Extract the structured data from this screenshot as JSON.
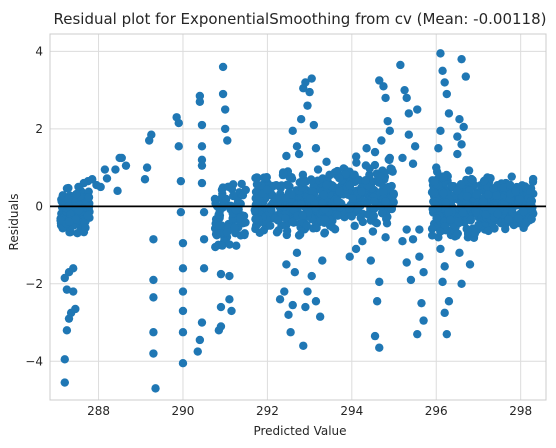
{
  "chart_data": {
    "type": "scatter",
    "title": "Residual plot for ExponentialSmoothing from cv (Mean: -0.00118)",
    "xlabel": "Predicted Value",
    "ylabel": "Residuals",
    "xlim": [
      286.85,
      298.6
    ],
    "ylim": [
      -5.0,
      4.45
    ],
    "xticks": [
      288,
      290,
      292,
      294,
      296,
      298
    ],
    "xtick_labels": [
      "288",
      "290",
      "292",
      "294",
      "296",
      "298"
    ],
    "yticks": [
      -4,
      -2,
      0,
      2,
      4
    ],
    "ytick_labels": [
      "−4",
      "−2",
      "0",
      "2",
      "4"
    ],
    "grid": true,
    "zero_line": 0,
    "marker_color": "#1f77b4",
    "points": [
      [
        287.2,
        -4.55
      ],
      [
        287.2,
        -3.95
      ],
      [
        287.25,
        -3.2
      ],
      [
        287.3,
        -2.9
      ],
      [
        287.35,
        -2.75
      ],
      [
        287.4,
        -2.2
      ],
      [
        287.2,
        -1.85
      ],
      [
        287.3,
        -1.7
      ],
      [
        287.4,
        -1.6
      ],
      [
        287.45,
        -2.65
      ],
      [
        287.25,
        -2.15
      ],
      [
        287.75,
        0.65
      ],
      [
        287.65,
        0.6
      ],
      [
        287.85,
        0.7
      ],
      [
        287.95,
        0.55
      ],
      [
        288.05,
        0.5
      ],
      [
        288.15,
        0.95
      ],
      [
        288.2,
        0.72
      ],
      [
        288.4,
        0.95
      ],
      [
        288.5,
        1.25
      ],
      [
        288.45,
        0.4
      ],
      [
        288.55,
        1.25
      ],
      [
        288.65,
        1.05
      ],
      [
        289.1,
        0.7
      ],
      [
        289.15,
        1.0
      ],
      [
        289.2,
        1.7
      ],
      [
        289.25,
        1.85
      ],
      [
        289.3,
        -0.85
      ],
      [
        289.3,
        -1.9
      ],
      [
        289.3,
        -2.35
      ],
      [
        289.3,
        -3.25
      ],
      [
        289.3,
        -3.8
      ],
      [
        289.35,
        -4.7
      ],
      [
        289.85,
        2.3
      ],
      [
        289.9,
        2.15
      ],
      [
        289.9,
        1.55
      ],
      [
        289.95,
        0.65
      ],
      [
        289.95,
        -0.15
      ],
      [
        290.0,
        -0.95
      ],
      [
        290.0,
        -1.6
      ],
      [
        290.0,
        -2.2
      ],
      [
        290.0,
        -2.7
      ],
      [
        290.0,
        -3.25
      ],
      [
        290.0,
        -4.05
      ],
      [
        290.4,
        2.85
      ],
      [
        290.4,
        2.7
      ],
      [
        290.45,
        2.1
      ],
      [
        290.45,
        1.55
      ],
      [
        290.45,
        1.2
      ],
      [
        290.45,
        1.05
      ],
      [
        290.45,
        0.6
      ],
      [
        290.5,
        -0.15
      ],
      [
        290.5,
        -0.85
      ],
      [
        290.5,
        -1.6
      ],
      [
        290.45,
        -3.0
      ],
      [
        290.4,
        -3.45
      ],
      [
        290.35,
        -3.75
      ],
      [
        290.8,
        -0.45
      ],
      [
        290.85,
        -1.0
      ],
      [
        290.9,
        -1.75
      ],
      [
        290.9,
        -2.6
      ],
      [
        290.9,
        -3.1
      ],
      [
        290.85,
        -3.2
      ],
      [
        290.95,
        3.6
      ],
      [
        290.95,
        2.9
      ],
      [
        291.0,
        2.5
      ],
      [
        291.0,
        2.0
      ],
      [
        291.05,
        1.7
      ],
      [
        291.1,
        -1.8
      ],
      [
        291.1,
        -2.4
      ],
      [
        291.15,
        -2.7
      ],
      [
        292.3,
        -2.4
      ],
      [
        292.4,
        -2.2
      ],
      [
        292.45,
        -1.5
      ],
      [
        292.5,
        -2.8
      ],
      [
        292.55,
        -3.25
      ],
      [
        292.6,
        -2.55
      ],
      [
        292.65,
        -1.7
      ],
      [
        292.7,
        -1.2
      ],
      [
        292.75,
        -0.75
      ],
      [
        292.85,
        -3.6
      ],
      [
        292.9,
        -2.6
      ],
      [
        292.95,
        -2.2
      ],
      [
        293.05,
        -1.8
      ],
      [
        293.15,
        -2.45
      ],
      [
        293.25,
        -2.85
      ],
      [
        293.3,
        -1.4
      ],
      [
        293.35,
        -0.7
      ],
      [
        293.5,
        -0.5
      ],
      [
        292.6,
        1.95
      ],
      [
        292.7,
        1.55
      ],
      [
        292.75,
        1.35
      ],
      [
        292.8,
        2.25
      ],
      [
        292.85,
        3.05
      ],
      [
        292.9,
        3.2
      ],
      [
        292.95,
        2.6
      ],
      [
        293.0,
        2.95
      ],
      [
        293.05,
        3.3
      ],
      [
        293.1,
        2.1
      ],
      [
        293.15,
        1.5
      ],
      [
        293.2,
        0.95
      ],
      [
        292.45,
        1.3
      ],
      [
        292.5,
        0.8
      ],
      [
        293.95,
        -1.3
      ],
      [
        294.1,
        -1.1
      ],
      [
        294.25,
        -0.9
      ],
      [
        294.55,
        -3.35
      ],
      [
        294.6,
        -2.45
      ],
      [
        294.65,
        -3.65
      ],
      [
        294.65,
        -1.95
      ],
      [
        294.7,
        1.7
      ],
      [
        294.75,
        3.1
      ],
      [
        294.65,
        3.25
      ],
      [
        294.8,
        2.8
      ],
      [
        294.85,
        2.2
      ],
      [
        294.9,
        1.95
      ],
      [
        294.9,
        1.25
      ],
      [
        294.55,
        1.4
      ],
      [
        294.35,
        1.5
      ],
      [
        294.45,
        -1.4
      ],
      [
        294.8,
        -0.8
      ],
      [
        294.5,
        -0.65
      ],
      [
        295.15,
        3.65
      ],
      [
        295.25,
        3.0
      ],
      [
        295.3,
        2.8
      ],
      [
        295.35,
        2.4
      ],
      [
        295.35,
        1.85
      ],
      [
        295.2,
        1.25
      ],
      [
        295.45,
        1.1
      ],
      [
        295.5,
        1.55
      ],
      [
        295.55,
        2.5
      ],
      [
        295.6,
        -0.6
      ],
      [
        295.6,
        -1.3
      ],
      [
        295.65,
        -2.5
      ],
      [
        295.7,
        -2.95
      ],
      [
        295.55,
        -3.3
      ],
      [
        295.4,
        -1.9
      ],
      [
        295.3,
        -1.45
      ],
      [
        295.7,
        -1.7
      ],
      [
        295.2,
        -0.9
      ],
      [
        295.3,
        -0.6
      ],
      [
        295.45,
        -0.85
      ],
      [
        295.95,
        -0.45
      ],
      [
        296.05,
        -0.8
      ],
      [
        296.1,
        -1.1
      ],
      [
        296.15,
        -1.95
      ],
      [
        296.2,
        -2.75
      ],
      [
        296.25,
        -3.3
      ],
      [
        296.3,
        -2.45
      ],
      [
        296.2,
        -1.55
      ],
      [
        296.1,
        3.95
      ],
      [
        296.15,
        3.5
      ],
      [
        296.2,
        3.2
      ],
      [
        296.25,
        2.9
      ],
      [
        296.3,
        2.4
      ],
      [
        296.1,
        1.95
      ],
      [
        296.05,
        1.5
      ],
      [
        296.0,
        1.0
      ],
      [
        296.6,
        3.8
      ],
      [
        296.7,
        3.35
      ],
      [
        296.55,
        2.25
      ],
      [
        296.65,
        2.05
      ],
      [
        296.5,
        1.8
      ],
      [
        296.6,
        1.6
      ],
      [
        296.5,
        1.35
      ],
      [
        296.55,
        -1.2
      ],
      [
        296.6,
        -2.0
      ],
      [
        296.75,
        -0.8
      ],
      [
        296.8,
        -1.5
      ],
      [
        296.45,
        -0.65
      ],
      [
        297.05,
        -0.3
      ],
      [
        297.15,
        -0.6
      ],
      [
        297.3,
        -0.5
      ]
    ]
  }
}
